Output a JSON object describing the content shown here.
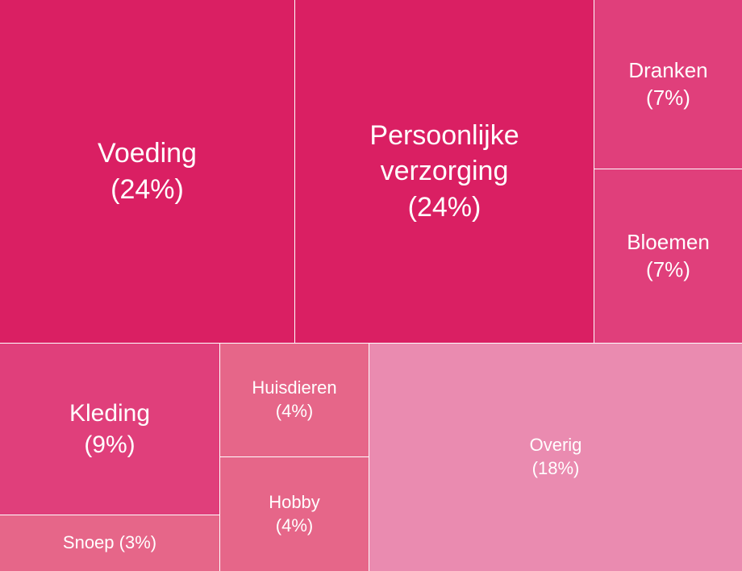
{
  "chart_data": {
    "type": "treemap",
    "title": "",
    "items": [
      {
        "label": "Voeding\n(24%)",
        "name": "Voeding",
        "value": 24,
        "color": "#DA1F63"
      },
      {
        "label": "Persoonlijke\nverzorging\n(24%)",
        "name": "Persoonlijke verzorging",
        "value": 24,
        "color": "#DA1F63"
      },
      {
        "label": "Dranken\n(7%)",
        "name": "Dranken",
        "value": 7,
        "color": "#E03F7B"
      },
      {
        "label": "Bloemen\n(7%)",
        "name": "Bloemen",
        "value": 7,
        "color": "#E03F7B"
      },
      {
        "label": "Kleding\n(9%)",
        "name": "Kleding",
        "value": 9,
        "color": "#E03F7B"
      },
      {
        "label": "Snoep (3%)",
        "name": "Snoep",
        "value": 3,
        "color": "#E66689"
      },
      {
        "label": "Huisdieren\n(4%)",
        "name": "Huisdieren",
        "value": 4,
        "color": "#E66689"
      },
      {
        "label": "Hobby\n(4%)",
        "name": "Hobby",
        "value": 4,
        "color": "#E66689"
      },
      {
        "label": "Overig\n(18%)",
        "name": "Overig",
        "value": 18,
        "color": "#EA8BB0"
      }
    ]
  }
}
